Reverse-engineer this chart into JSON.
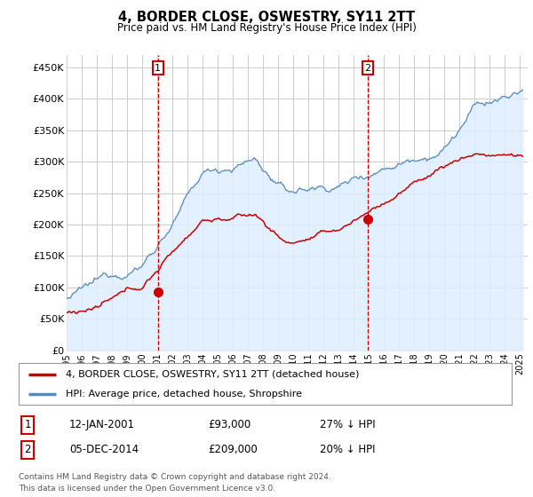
{
  "title": "4, BORDER CLOSE, OSWESTRY, SY11 2TT",
  "subtitle": "Price paid vs. HM Land Registry's House Price Index (HPI)",
  "xlim_start": 1995.0,
  "xlim_end": 2025.5,
  "ylim_bottom": 0,
  "ylim_top": 470000,
  "yticks": [
    0,
    50000,
    100000,
    150000,
    200000,
    250000,
    300000,
    350000,
    400000,
    450000
  ],
  "ytick_labels": [
    "£0",
    "£50K",
    "£100K",
    "£150K",
    "£200K",
    "£250K",
    "£300K",
    "£350K",
    "£400K",
    "£450K"
  ],
  "sale1_x": 2001.04,
  "sale1_y": 93000,
  "sale2_x": 2014.92,
  "sale2_y": 209000,
  "line1_color": "#cc0000",
  "line2_color": "#5588bb",
  "fill_color": "#ddeeff",
  "legend_label1": "4, BORDER CLOSE, OSWESTRY, SY11 2TT (detached house)",
  "legend_label2": "HPI: Average price, detached house, Shropshire",
  "sale1_date": "12-JAN-2001",
  "sale1_price": "£93,000",
  "sale1_note": "27% ↓ HPI",
  "sale2_date": "05-DEC-2014",
  "sale2_price": "£209,000",
  "sale2_note": "20% ↓ HPI",
  "footer1": "Contains HM Land Registry data © Crown copyright and database right 2024.",
  "footer2": "This data is licensed under the Open Government Licence v3.0.",
  "background_color": "#ffffff",
  "grid_color": "#cccccc"
}
